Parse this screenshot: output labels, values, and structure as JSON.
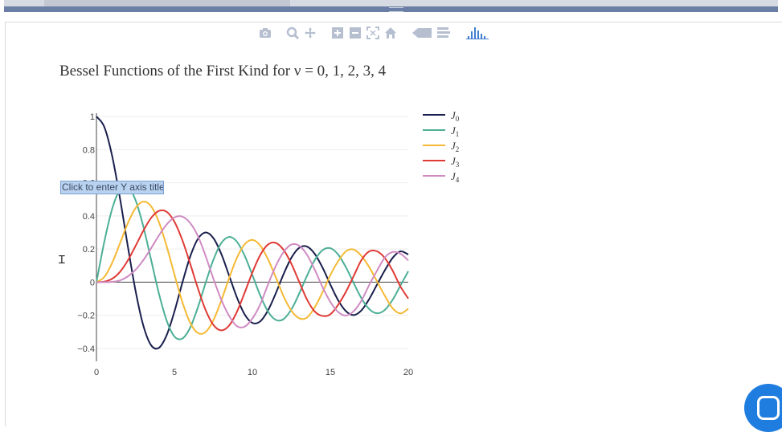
{
  "modebar": {
    "buttons": [
      "camera-icon",
      "zoom-icon",
      "pan-icon",
      "zoom-in-icon",
      "zoom-out-icon",
      "autoscale-icon",
      "home-icon",
      "hover-closest-icon",
      "hover-compare-icon",
      "plotly-logo-icon"
    ]
  },
  "editor": {
    "y_axis_placeholder": "Click to enter Y axis title"
  },
  "colors": {
    "J0": "#1a1f4d",
    "J1": "#4caf96",
    "J2": "#f5b935",
    "J3": "#e03a35",
    "J4": "#cf8bc2",
    "modebar_icon": "#b6bfd0",
    "modebar_logo": "#3f7fd1",
    "chat_button": "#1f7de0"
  },
  "chart_data": {
    "type": "line",
    "title": "Bessel Functions of the First Kind for ν = 0, 1, 2, 3, 4",
    "xlabel": "",
    "ylabel": "",
    "xlim": [
      0,
      20
    ],
    "ylim": [
      -0.42,
      1.02
    ],
    "x_ticks": [
      0,
      5,
      10,
      15,
      20
    ],
    "x_tick_labels": [
      "0",
      "5",
      "10",
      "15",
      "20"
    ],
    "y_ticks": [
      -0.4,
      -0.2,
      0,
      0.2,
      0.4,
      0.6,
      0.8,
      1
    ],
    "y_tick_labels": [
      "−0.4",
      "−0.2",
      "0",
      "0.2",
      "0.4",
      "0.6",
      "0.8",
      "1"
    ],
    "grid": true,
    "legend_position": "right",
    "x": [
      0,
      0.5,
      1,
      1.5,
      2,
      2.5,
      3,
      3.5,
      4,
      4.5,
      5,
      5.5,
      6,
      6.5,
      7,
      7.5,
      8,
      8.5,
      9,
      9.5,
      10,
      10.5,
      11,
      11.5,
      12,
      12.5,
      13,
      13.5,
      14,
      14.5,
      15,
      15.5,
      16,
      16.5,
      17,
      17.5,
      18,
      18.5,
      19,
      19.5,
      20
    ],
    "series": [
      {
        "name": "J0",
        "legend_main": "J",
        "legend_sub": "0",
        "values": [
          1,
          0.938,
          0.765,
          0.512,
          0.224,
          -0.048,
          -0.26,
          -0.38,
          -0.397,
          -0.321,
          -0.178,
          -0.007,
          0.151,
          0.26,
          0.3,
          0.266,
          0.172,
          0.042,
          -0.09,
          -0.194,
          -0.246,
          -0.237,
          -0.171,
          -0.068,
          0.048,
          0.147,
          0.207,
          0.215,
          0.171,
          0.088,
          -0.014,
          -0.109,
          -0.175,
          -0.199,
          -0.17,
          -0.101,
          -0.014,
          0.072,
          0.147,
          0.186,
          0.167
        ]
      },
      {
        "name": "J1",
        "legend_main": "J",
        "legend_sub": "1",
        "values": [
          0,
          0.242,
          0.44,
          0.558,
          0.577,
          0.497,
          0.339,
          0.137,
          -0.066,
          -0.231,
          -0.328,
          -0.341,
          -0.277,
          -0.154,
          -0.005,
          0.135,
          0.235,
          0.273,
          0.245,
          0.161,
          0.043,
          -0.079,
          -0.177,
          -0.228,
          -0.223,
          -0.165,
          -0.07,
          0.038,
          0.133,
          0.193,
          0.205,
          0.167,
          0.09,
          -0.006,
          -0.098,
          -0.163,
          -0.188,
          -0.167,
          -0.106,
          -0.02,
          0.066
        ]
      },
      {
        "name": "J2",
        "legend_main": "J",
        "legend_sub": "2",
        "values": [
          0,
          0.031,
          0.115,
          0.232,
          0.353,
          0.446,
          0.486,
          0.459,
          0.364,
          0.218,
          0.047,
          -0.117,
          -0.243,
          -0.307,
          -0.301,
          -0.23,
          -0.113,
          0.022,
          0.145,
          0.228,
          0.255,
          0.222,
          0.139,
          0.03,
          -0.085,
          -0.172,
          -0.218,
          -0.214,
          -0.152,
          -0.061,
          0.042,
          0.126,
          0.186,
          0.197,
          0.158,
          0.09,
          0.004,
          -0.083,
          -0.158,
          -0.189,
          -0.16
        ]
      },
      {
        "name": "J3",
        "legend_main": "J",
        "legend_sub": "3",
        "values": [
          0,
          0.003,
          0.02,
          0.061,
          0.129,
          0.217,
          0.309,
          0.387,
          0.43,
          0.425,
          0.365,
          0.256,
          0.115,
          -0.035,
          -0.168,
          -0.258,
          -0.291,
          -0.263,
          -0.181,
          -0.065,
          0.058,
          0.163,
          0.227,
          0.237,
          0.195,
          0.111,
          0.003,
          -0.104,
          -0.177,
          -0.204,
          -0.194,
          -0.137,
          -0.058,
          0.037,
          0.134,
          0.186,
          0.186,
          0.145,
          0.069,
          -0.027,
          -0.099
        ]
      },
      {
        "name": "J4",
        "legend_main": "J",
        "legend_sub": "4",
        "values": [
          0,
          0.0,
          0.002,
          0.01,
          0.034,
          0.074,
          0.132,
          0.204,
          0.281,
          0.348,
          0.391,
          0.396,
          0.358,
          0.28,
          0.158,
          0.021,
          -0.105,
          -0.202,
          -0.265,
          -0.269,
          -0.22,
          -0.135,
          -0.015,
          0.097,
          0.182,
          0.227,
          0.22,
          0.166,
          0.076,
          -0.03,
          -0.119,
          -0.18,
          -0.202,
          -0.175,
          -0.111,
          -0.016,
          0.07,
          0.149,
          0.182,
          0.172,
          0.131
        ]
      }
    ]
  }
}
